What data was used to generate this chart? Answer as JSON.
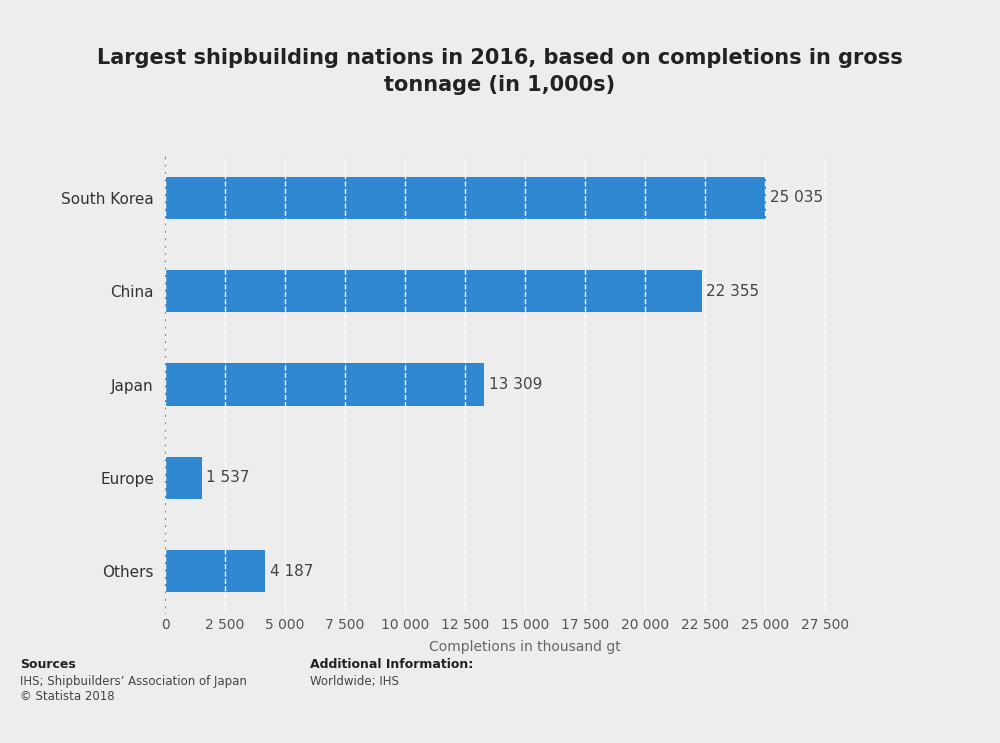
{
  "title": "Largest shipbuilding nations in 2016, based on completions in gross\ntonnage (in 1,000s)",
  "categories": [
    "South Korea",
    "China",
    "Japan",
    "Europe",
    "Others"
  ],
  "values": [
    25035,
    22355,
    13309,
    1537,
    4187
  ],
  "labels": [
    "25 035",
    "22 355",
    "13 309",
    "1 537",
    "4 187"
  ],
  "bar_color": "#2f86d1",
  "background_color": "#ededed",
  "plot_bg_color": "#ededed",
  "xlabel": "Completions in thousand gt",
  "xlim": [
    0,
    30000
  ],
  "xticks": [
    0,
    2500,
    5000,
    7500,
    10000,
    12500,
    15000,
    17500,
    20000,
    22500,
    25000,
    27500
  ],
  "xtick_labels": [
    "0",
    "2 500",
    "5 000",
    "7 500",
    "10 000",
    "12 500",
    "15 000",
    "17 500",
    "20 000",
    "22 500",
    "25 000",
    "27 500"
  ],
  "title_fontsize": 15,
  "label_fontsize": 11,
  "tick_fontsize": 10,
  "sources_label": "Sources",
  "sources_body": "IHS; Shipbuildersʼ Association of Japan\n© Statista 2018",
  "additional_label": "Additional Information:",
  "additional_body": "Worldwide; IHS",
  "grid_color": "#ffffff",
  "bar_height": 0.45
}
